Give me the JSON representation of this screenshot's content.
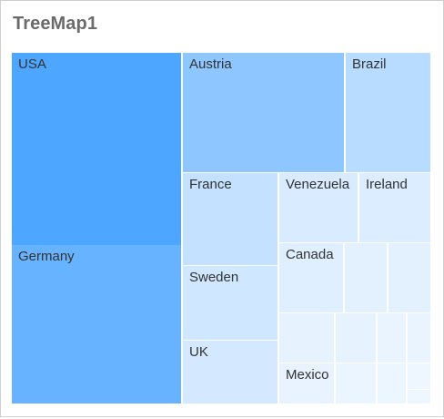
{
  "widget": {
    "title": "TreeMap1"
  },
  "chart_data": {
    "type": "treemap",
    "title": "TreeMap1",
    "items": [
      {
        "label": "USA",
        "value": 26.5,
        "color": "#4da6ff"
      },
      {
        "label": "Germany",
        "value": 21.9,
        "color": "#67b3ff"
      },
      {
        "label": "Austria",
        "value": 17.4,
        "color": "#8ec7ff"
      },
      {
        "label": "Brazil",
        "value": 8.8,
        "color": "#b8dcff"
      },
      {
        "label": "France",
        "value": 7.4,
        "color": "#c4e1ff"
      },
      {
        "label": "Sweden",
        "value": 5.8,
        "color": "#cfe7ff"
      },
      {
        "label": "UK",
        "value": 5.0,
        "color": "#d4e9ff"
      },
      {
        "label": "Venezuela",
        "value": 4.0,
        "color": "#d8ebff"
      },
      {
        "label": "Ireland",
        "value": 3.8,
        "color": "#dbedff"
      },
      {
        "label": "Canada",
        "value": 3.4,
        "color": "#dfefff"
      },
      {
        "label": "",
        "value": 2.4,
        "color": "#e3f1ff"
      },
      {
        "label": "",
        "value": 2.4,
        "color": "#e3f1ff"
      },
      {
        "label": "",
        "value": 1.7,
        "color": "#e6f3ff"
      },
      {
        "label": "",
        "value": 1.5,
        "color": "#e6f3ff"
      },
      {
        "label": "",
        "value": 1.0,
        "color": "#e9f4ff"
      },
      {
        "label": "",
        "value": 0.7,
        "color": "#e9f4ff"
      },
      {
        "label": "Mexico",
        "value": 1.8,
        "color": "#e8f3ff"
      },
      {
        "label": "",
        "value": 1.4,
        "color": "#ebf5ff"
      },
      {
        "label": "",
        "value": 1.0,
        "color": "#ecf6ff"
      },
      {
        "label": "",
        "value": 0.5,
        "color": "#eef7ff"
      },
      {
        "label": "",
        "value": 0.5,
        "color": "#eef7ff"
      }
    ]
  }
}
